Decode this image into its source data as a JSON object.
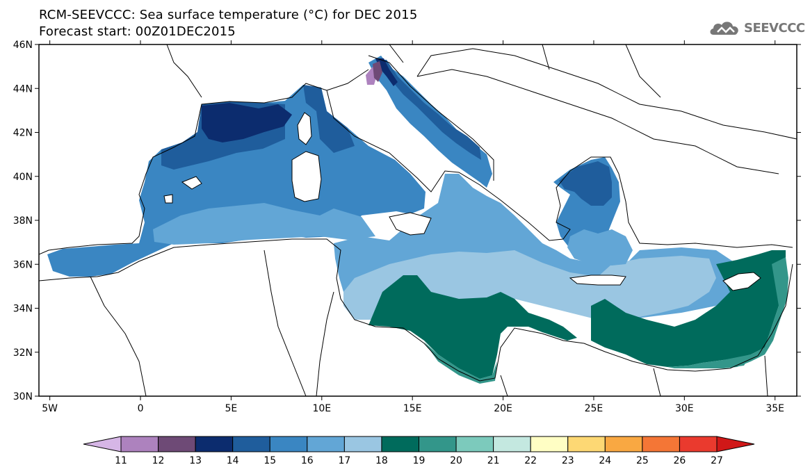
{
  "title_line1": "RCM-SEEVCCC: Sea surface temperature (°C) for DEC 2015",
  "title_line2": "Forecast start: 00Z01DEC2015",
  "logo_text": "SEEVCCC",
  "map": {
    "lon_range": [
      -5.6,
      36.2
    ],
    "lat_range": [
      29.8,
      46
    ],
    "lat_ticks": [
      "30N",
      "32N",
      "34N",
      "36N",
      "38N",
      "40N",
      "42N",
      "44N",
      "46N"
    ],
    "lon_ticks": [
      "5W",
      "0",
      "5E",
      "10E",
      "15E",
      "20E",
      "25E",
      "30E",
      "35E"
    ]
  },
  "colorbar": {
    "labels": [
      "11",
      "12",
      "13",
      "14",
      "15",
      "16",
      "17",
      "18",
      "19",
      "20",
      "21",
      "22",
      "23",
      "24",
      "25",
      "26",
      "27"
    ],
    "colors": [
      "#d6b6e6",
      "#ad82be",
      "#6e4a76",
      "#0c2c6e",
      "#1f5d9c",
      "#3a86c2",
      "#62a6d6",
      "#9ac6e2",
      "#006b5c",
      "#33968a",
      "#7ccabc",
      "#c4e8e0",
      "#fffec4",
      "#fdd874",
      "#f9a842",
      "#f47636",
      "#ea3a2e",
      "#d01818"
    ]
  },
  "legend_colors": {
    "14": "#0c2c6e",
    "15": "#1f5d9c",
    "16": "#3a86c2",
    "17": "#62a6d6",
    "18": "#9ac6e2",
    "19": "#006b5c",
    "20": "#33968a"
  }
}
